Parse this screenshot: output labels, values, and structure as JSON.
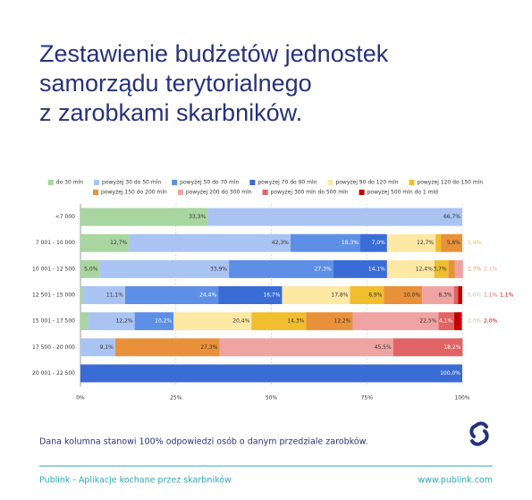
{
  "header": {
    "title_lines": [
      "Zestawienie budżetów jednostek",
      "samorządu terytorialnego",
      "z zarobkami skarbników."
    ]
  },
  "chart_data": {
    "type": "stacked_barh",
    "categories": [
      "<7 000",
      "7 001 - 10 000",
      "10 001 - 12 500",
      "12 501 - 15 000",
      "15 001 - 17 500",
      "17 500 - 20 000",
      "20 001 - 22 500"
    ],
    "series": [
      {
        "name": "do 30 mln",
        "color": "#a8d5a0",
        "values": [
          33.3,
          12.7,
          5.0,
          0.6,
          2.0,
          null,
          null
        ],
        "value_labels": [
          "33,3%",
          "12,7%",
          "5,0%",
          "0,6%",
          "2,0%",
          null,
          null
        ]
      },
      {
        "name": "powyżej 30 do 50 mln",
        "color": "#a9c4f2",
        "values": [
          66.7,
          42.3,
          33.9,
          11.1,
          12.2,
          9.1,
          null
        ],
        "value_labels": [
          "66,7%",
          "42,3%",
          "33,9%",
          "11,1%",
          "12,2%",
          "9,1%",
          null
        ]
      },
      {
        "name": "powyżej 50 do 70 mln",
        "color": "#5d8fe6",
        "values": [
          null,
          18.3,
          27.3,
          24.4,
          10.2,
          null,
          null
        ],
        "value_labels": [
          null,
          "18,3%",
          "27,3%",
          "24,4%",
          "10,2%",
          null,
          null
        ]
      },
      {
        "name": "powyżej 70 do 90 mln",
        "color": "#3a6cd6",
        "values": [
          null,
          7.0,
          14.1,
          16.7,
          null,
          null,
          100.0
        ],
        "value_labels": [
          null,
          "7,0%",
          "14,1%",
          "16,7%",
          null,
          null,
          "100,0%"
        ]
      },
      {
        "name": "powyżej 90 do 120 mln",
        "color": "#fde8a4",
        "values": [
          null,
          12.7,
          12.4,
          17.8,
          20.4,
          null,
          null
        ],
        "value_labels": [
          null,
          "12,7%",
          "12,4%",
          "17,8%",
          "20,4%",
          null,
          null
        ]
      },
      {
        "name": "powyżej 120 do 150 mln",
        "color": "#f0be2e",
        "values": [
          null,
          1.4,
          3.7,
          8.9,
          14.3,
          null,
          null
        ],
        "value_labels": [
          null,
          "1,4%",
          "3,7%",
          "8,9%",
          "14,3%",
          null,
          null
        ]
      },
      {
        "name": "powyżej 150 do 200 mln",
        "color": "#e8913a",
        "values": [
          null,
          5.6,
          1.7,
          10.0,
          12.2,
          27.3,
          null
        ],
        "value_labels": [
          null,
          "5,6%",
          "1,7%",
          "10,0%",
          "12,2%",
          "27,3%",
          null
        ]
      },
      {
        "name": "powyżej 200 do 300 mln",
        "color": "#f0a3a3",
        "values": [
          null,
          null,
          2.1,
          8.3,
          22.5,
          45.5,
          null
        ],
        "value_labels": [
          null,
          null,
          "2,1%",
          "8,3%",
          "22,5%",
          "45,5%",
          null
        ]
      },
      {
        "name": "powyżej 300 mln do 500 mln",
        "color": "#e06464",
        "values": [
          null,
          null,
          null,
          1.1,
          4.1,
          18.2,
          null
        ],
        "value_labels": [
          null,
          null,
          null,
          "1,1%",
          "4,1%",
          "18,2%",
          null
        ]
      },
      {
        "name": "powyżej 500 mln do 1 mld",
        "color": "#c40000",
        "values": [
          null,
          null,
          null,
          1.1,
          2.0,
          null,
          null
        ],
        "value_labels": [
          null,
          null,
          null,
          "1,1%",
          "2,0%",
          null,
          null
        ]
      }
    ],
    "xlim": [
      0,
      100
    ],
    "xticks": [
      {
        "value": 0,
        "label": "0%"
      },
      {
        "value": 25,
        "label": "25%"
      },
      {
        "value": 50,
        "label": "50%"
      },
      {
        "value": 75,
        "label": "75%"
      },
      {
        "value": 100,
        "label": "100%"
      }
    ],
    "grid": true,
    "legend": "top"
  },
  "note": "Dana kolumna stanowi 100% odpowiedzi osób o danym przedziale zarobków.",
  "footer": {
    "left": "Publink - Aplikacje kochane przez skarbników",
    "right": "www.publink.com"
  }
}
